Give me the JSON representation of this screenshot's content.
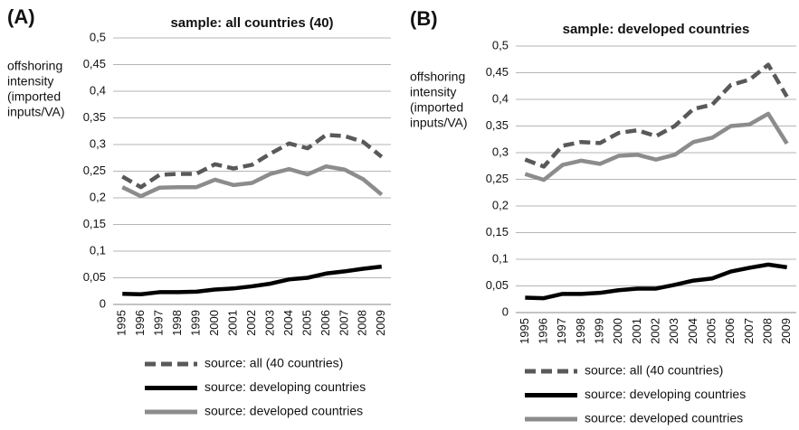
{
  "chart_data": [
    {
      "type": "line",
      "panel": "(A)",
      "title": "sample: all countries (40)",
      "ylabel_lines": [
        "offshoring",
        "intensity",
        "(imported",
        "inputs/VA)"
      ],
      "categories": [
        "1995",
        "1996",
        "1997",
        "1998",
        "1999",
        "2000",
        "2001",
        "2002",
        "2003",
        "2004",
        "2005",
        "2006",
        "2007",
        "2008",
        "2009"
      ],
      "ylim": [
        0,
        0.5
      ],
      "yticks": [
        0,
        {
          "value": 0.05,
          "label": "0,05"
        },
        {
          "value": 0.1,
          "label": "0,1"
        },
        {
          "value": 0.15,
          "label": "0,15"
        },
        {
          "value": 0.2,
          "label": "0,2"
        },
        {
          "value": 0.25,
          "label": "0,25"
        },
        {
          "value": 0.3,
          "label": "0,3"
        },
        {
          "value": 0.35,
          "label": "0,35"
        },
        {
          "value": 0.4,
          "label": "0,4"
        },
        {
          "value": 0.45,
          "label": "0,45"
        },
        {
          "value": 0.5,
          "label": "0,5"
        }
      ],
      "grid": true,
      "series": [
        {
          "name": "source: all (40 countries)",
          "color": "#595959",
          "dashed": true,
          "values": [
            0.24,
            0.22,
            0.243,
            0.245,
            0.245,
            0.263,
            0.255,
            0.262,
            0.283,
            0.302,
            0.293,
            0.318,
            0.316,
            0.305,
            0.277
          ]
        },
        {
          "name": "source: developing countries",
          "color": "#000000",
          "dashed": false,
          "values": [
            0.02,
            0.019,
            0.023,
            0.023,
            0.024,
            0.028,
            0.03,
            0.034,
            0.039,
            0.047,
            0.05,
            0.058,
            0.062,
            0.067,
            0.071
          ]
        },
        {
          "name": "source: developed countries",
          "color": "#8c8c8c",
          "dashed": false,
          "values": [
            0.22,
            0.203,
            0.219,
            0.22,
            0.22,
            0.234,
            0.224,
            0.228,
            0.245,
            0.254,
            0.244,
            0.259,
            0.253,
            0.235,
            0.206
          ]
        }
      ]
    },
    {
      "type": "line",
      "panel": "(B)",
      "title": "sample: developed countries",
      "ylabel_lines": [
        "offshoring",
        "intensity",
        "(imported",
        "inputs/VA)"
      ],
      "categories": [
        "1995",
        "1996",
        "1997",
        "1998",
        "1999",
        "2000",
        "2001",
        "2002",
        "2003",
        "2004",
        "2005",
        "2006",
        "2007",
        "2008",
        "2009"
      ],
      "ylim": [
        0,
        0.5
      ],
      "yticks": [
        0,
        {
          "value": 0.05,
          "label": "0,05"
        },
        {
          "value": 0.1,
          "label": "0,1"
        },
        {
          "value": 0.15,
          "label": "0,15"
        },
        {
          "value": 0.2,
          "label": "0,2"
        },
        {
          "value": 0.25,
          "label": "0,25"
        },
        {
          "value": 0.3,
          "label": "0,3"
        },
        {
          "value": 0.35,
          "label": "0,35"
        },
        {
          "value": 0.4,
          "label": "0,4"
        },
        {
          "value": 0.45,
          "label": "0,45"
        },
        {
          "value": 0.5,
          "label": "0,5"
        }
      ],
      "grid": true,
      "series": [
        {
          "name": "source: all (40 countries)",
          "color": "#595959",
          "dashed": true,
          "values": [
            0.287,
            0.274,
            0.313,
            0.32,
            0.318,
            0.337,
            0.342,
            0.331,
            0.35,
            0.382,
            0.39,
            0.427,
            0.437,
            0.465,
            0.405
          ]
        },
        {
          "name": "source: developing countries",
          "color": "#000000",
          "dashed": false,
          "values": [
            0.028,
            0.027,
            0.035,
            0.035,
            0.037,
            0.042,
            0.045,
            0.045,
            0.052,
            0.06,
            0.064,
            0.077,
            0.084,
            0.09,
            0.085
          ]
        },
        {
          "name": "source: developed countries",
          "color": "#8c8c8c",
          "dashed": false,
          "values": [
            0.26,
            0.249,
            0.277,
            0.285,
            0.279,
            0.294,
            0.296,
            0.287,
            0.296,
            0.32,
            0.328,
            0.35,
            0.353,
            0.373,
            0.317
          ]
        }
      ]
    }
  ]
}
